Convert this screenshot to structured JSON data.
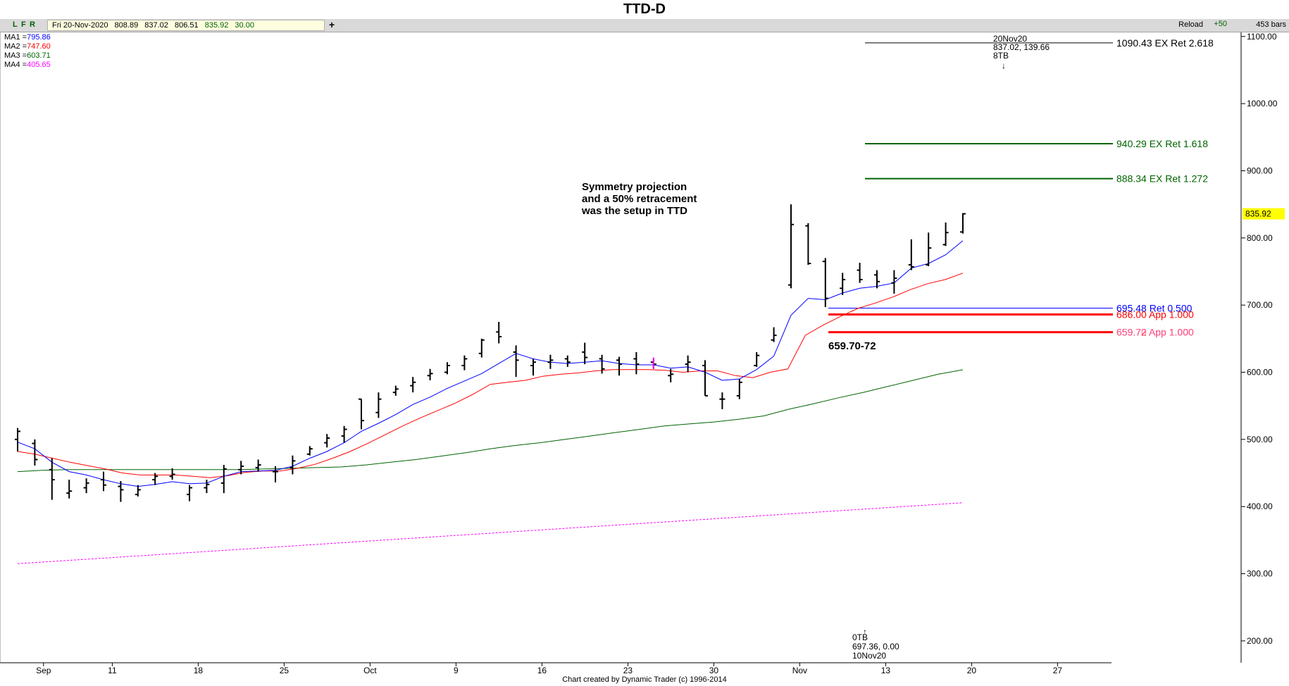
{
  "title": "TTD-D",
  "toolbar": {
    "buttons": [
      "L",
      "F",
      "R"
    ],
    "info": {
      "date": "Fri 20-Nov-2020",
      "open": "808.89",
      "high": "837.02",
      "low": "806.51",
      "close": "835.92",
      "extra": "30.00"
    },
    "plus_label": "+",
    "reload_label": "Reload",
    "plus50_label": "+50",
    "bars_label": "453 bars"
  },
  "moving_averages": [
    {
      "label": "MA1 =",
      "value": "795.86",
      "color": "#0000ff"
    },
    {
      "label": "MA2 =",
      "value": "747.60",
      "color": "#ff0000"
    },
    {
      "label": "MA3 =",
      "value": "603.71",
      "color": "#006400"
    },
    {
      "label": "MA4 =",
      "value": "405.65",
      "color": "#ff00ff"
    }
  ],
  "credit": "Chart created by Dynamic Trader  (c) 1996-2014",
  "chart_data": {
    "type": "ohlc",
    "title": "TTD-D",
    "ylim": [
      180,
      1105
    ],
    "y_ticks": [
      "1100.00",
      "1000.00",
      "900.00",
      "800.00",
      "700.00",
      "600.00",
      "500.00",
      "400.00",
      "300.00",
      "200.00"
    ],
    "y_tick_values": [
      1100,
      1000,
      900,
      800,
      700,
      600,
      500,
      400,
      300,
      200
    ],
    "x_labels": [
      "Sep",
      "11",
      "18",
      "25",
      "Oct",
      "9",
      "16",
      "23",
      "30",
      "Nov",
      "13",
      "20",
      "27"
    ],
    "x_label_bar_index": [
      2,
      6,
      11,
      16,
      21,
      26,
      31,
      36,
      41,
      46,
      51,
      56,
      61
    ],
    "last_price": "835.92",
    "bars": [
      {
        "o": 500,
        "h": 517,
        "l": 482,
        "c": 512
      },
      {
        "o": 494,
        "h": 500,
        "l": 461,
        "c": 470
      },
      {
        "o": 455,
        "h": 472,
        "l": 410,
        "c": 440
      },
      {
        "o": 420,
        "h": 440,
        "l": 412,
        "c": 423
      },
      {
        "o": 428,
        "h": 442,
        "l": 420,
        "c": 435
      },
      {
        "o": 440,
        "h": 452,
        "l": 423,
        "c": 432
      },
      {
        "o": 430,
        "h": 438,
        "l": 407,
        "c": 425
      },
      {
        "o": 418,
        "h": 432,
        "l": 415,
        "c": 425
      },
      {
        "o": 440,
        "h": 450,
        "l": 432,
        "c": 445
      },
      {
        "o": 445,
        "h": 457,
        "l": 440,
        "c": 448
      },
      {
        "o": 418,
        "h": 432,
        "l": 408,
        "c": 428
      },
      {
        "o": 428,
        "h": 440,
        "l": 420,
        "c": 433
      },
      {
        "o": 435,
        "h": 462,
        "l": 420,
        "c": 456
      },
      {
        "o": 455,
        "h": 468,
        "l": 448,
        "c": 460
      },
      {
        "o": 458,
        "h": 470,
        "l": 452,
        "c": 462
      },
      {
        "o": 452,
        "h": 460,
        "l": 436,
        "c": 452
      },
      {
        "o": 458,
        "h": 476,
        "l": 448,
        "c": 468
      },
      {
        "o": 478,
        "h": 490,
        "l": 476,
        "c": 486
      },
      {
        "o": 495,
        "h": 508,
        "l": 488,
        "c": 502
      },
      {
        "o": 505,
        "h": 520,
        "l": 495,
        "c": 515
      },
      {
        "o": 560,
        "h": 560,
        "l": 515,
        "c": 528
      },
      {
        "o": 540,
        "h": 570,
        "l": 532,
        "c": 560
      },
      {
        "o": 570,
        "h": 580,
        "l": 565,
        "c": 575
      },
      {
        "o": 580,
        "h": 593,
        "l": 570,
        "c": 585
      },
      {
        "o": 595,
        "h": 605,
        "l": 588,
        "c": 598
      },
      {
        "o": 600,
        "h": 615,
        "l": 597,
        "c": 610
      },
      {
        "o": 610,
        "h": 625,
        "l": 603,
        "c": 620
      },
      {
        "o": 628,
        "h": 650,
        "l": 622,
        "c": 648
      },
      {
        "o": 660,
        "h": 675,
        "l": 643,
        "c": 653
      },
      {
        "o": 630,
        "h": 640,
        "l": 593,
        "c": 618
      },
      {
        "o": 610,
        "h": 620,
        "l": 595,
        "c": 615
      },
      {
        "o": 615,
        "h": 626,
        "l": 605,
        "c": 618
      },
      {
        "o": 620,
        "h": 625,
        "l": 608,
        "c": 615
      },
      {
        "o": 630,
        "h": 644,
        "l": 612,
        "c": 622
      },
      {
        "o": 620,
        "h": 626,
        "l": 598,
        "c": 605
      },
      {
        "o": 618,
        "h": 623,
        "l": 595,
        "c": 612
      },
      {
        "o": 620,
        "h": 630,
        "l": 597,
        "c": 612
      },
      {
        "o": 615,
        "h": 620,
        "l": 605,
        "c": 612
      },
      {
        "o": 595,
        "h": 605,
        "l": 585,
        "c": 597
      },
      {
        "o": 612,
        "h": 625,
        "l": 600,
        "c": 615
      },
      {
        "o": 610,
        "h": 618,
        "l": 565,
        "c": 565
      },
      {
        "o": 560,
        "h": 570,
        "l": 545,
        "c": 560
      },
      {
        "o": 565,
        "h": 590,
        "l": 560,
        "c": 585
      },
      {
        "o": 610,
        "h": 630,
        "l": 608,
        "c": 625
      },
      {
        "o": 648,
        "h": 667,
        "l": 645,
        "c": 655
      },
      {
        "o": 730,
        "h": 850,
        "l": 725,
        "c": 820
      },
      {
        "o": 818,
        "h": 822,
        "l": 760,
        "c": 762
      },
      {
        "o": 765,
        "h": 770,
        "l": 697,
        "c": 710
      },
      {
        "o": 725,
        "h": 748,
        "l": 715,
        "c": 738
      },
      {
        "o": 752,
        "h": 763,
        "l": 733,
        "c": 738
      },
      {
        "o": 745,
        "h": 752,
        "l": 725,
        "c": 735
      },
      {
        "o": 733,
        "h": 752,
        "l": 717,
        "c": 740
      },
      {
        "o": 760,
        "h": 798,
        "l": 752,
        "c": 757
      },
      {
        "o": 760,
        "h": 808,
        "l": 758,
        "c": 785
      },
      {
        "o": 790,
        "h": 823,
        "l": 788,
        "c": 808
      },
      {
        "o": 808.89,
        "h": 837.02,
        "l": 806.51,
        "c": 835.92
      }
    ],
    "ma1_values": [
      496,
      486,
      466,
      452,
      447,
      440,
      434,
      430,
      433,
      437,
      434,
      435,
      445,
      452,
      453,
      454,
      460,
      472,
      482,
      495,
      512,
      524,
      537,
      552,
      563,
      576,
      587,
      598,
      613,
      628,
      620,
      615,
      613,
      615,
      617,
      613,
      611,
      611,
      606,
      608,
      600,
      588,
      590,
      604,
      624,
      685,
      710,
      708,
      718,
      725,
      728,
      733,
      755,
      762,
      775,
      795.86
    ],
    "ma2_values": [
      482,
      478,
      472,
      466,
      461,
      456,
      450,
      447,
      447,
      447,
      445,
      443,
      446,
      451,
      453,
      453,
      457,
      463,
      472,
      482,
      494,
      507,
      520,
      532,
      543,
      554,
      567,
      582,
      585,
      588,
      594,
      597,
      599,
      602,
      604,
      604,
      604,
      603,
      600,
      602,
      602,
      595,
      592,
      600,
      605,
      655,
      670,
      683,
      695,
      703,
      712,
      723,
      732,
      738,
      747.6
    ],
    "ma3_values": [
      452,
      454,
      455,
      455,
      455,
      455,
      455,
      455,
      455,
      455,
      456,
      457,
      458,
      459,
      462,
      466,
      470,
      475,
      480,
      486,
      491,
      495,
      500,
      505,
      510,
      515,
      520,
      523,
      526,
      530,
      535,
      545,
      553,
      562,
      570,
      579,
      588,
      597,
      603.71
    ],
    "ma3_start_index": 0,
    "ma4_values": [
      315,
      405.65
    ],
    "levels": [
      {
        "value": 1090.43,
        "label": "1090.43 EX Ret 2.618",
        "color": "#000000",
        "width": 1
      },
      {
        "value": 940.29,
        "label": "940.29 EX Ret 1.618",
        "color": "#006400",
        "width": 2
      },
      {
        "value": 888.34,
        "label": "888.34 EX Ret 1.272",
        "color": "#006400",
        "width": 2
      },
      {
        "value": 695.48,
        "label": "695.48 Ret 0.500",
        "color": "#0000ff",
        "width": 1
      },
      {
        "value": 686.0,
        "label": "686.00 App 1.000",
        "color": "#ff0000",
        "width": 3
      },
      {
        "value": 659.72,
        "label": "659.72 App 1.000",
        "color": "#ff0000",
        "width": 3
      }
    ],
    "overlap_label": "659.70 App 1.000",
    "annotations": {
      "setup_text": [
        "Symmetry projection",
        "and a 50% retracement",
        "was the setup in TTD"
      ],
      "zone_label": "659.70-72",
      "high_pivot": [
        "20Nov20",
        "837.02, 139.66",
        "8TB"
      ],
      "low_pivot": [
        "0TB",
        "697.36, 0.00",
        "10Nov20"
      ]
    }
  }
}
